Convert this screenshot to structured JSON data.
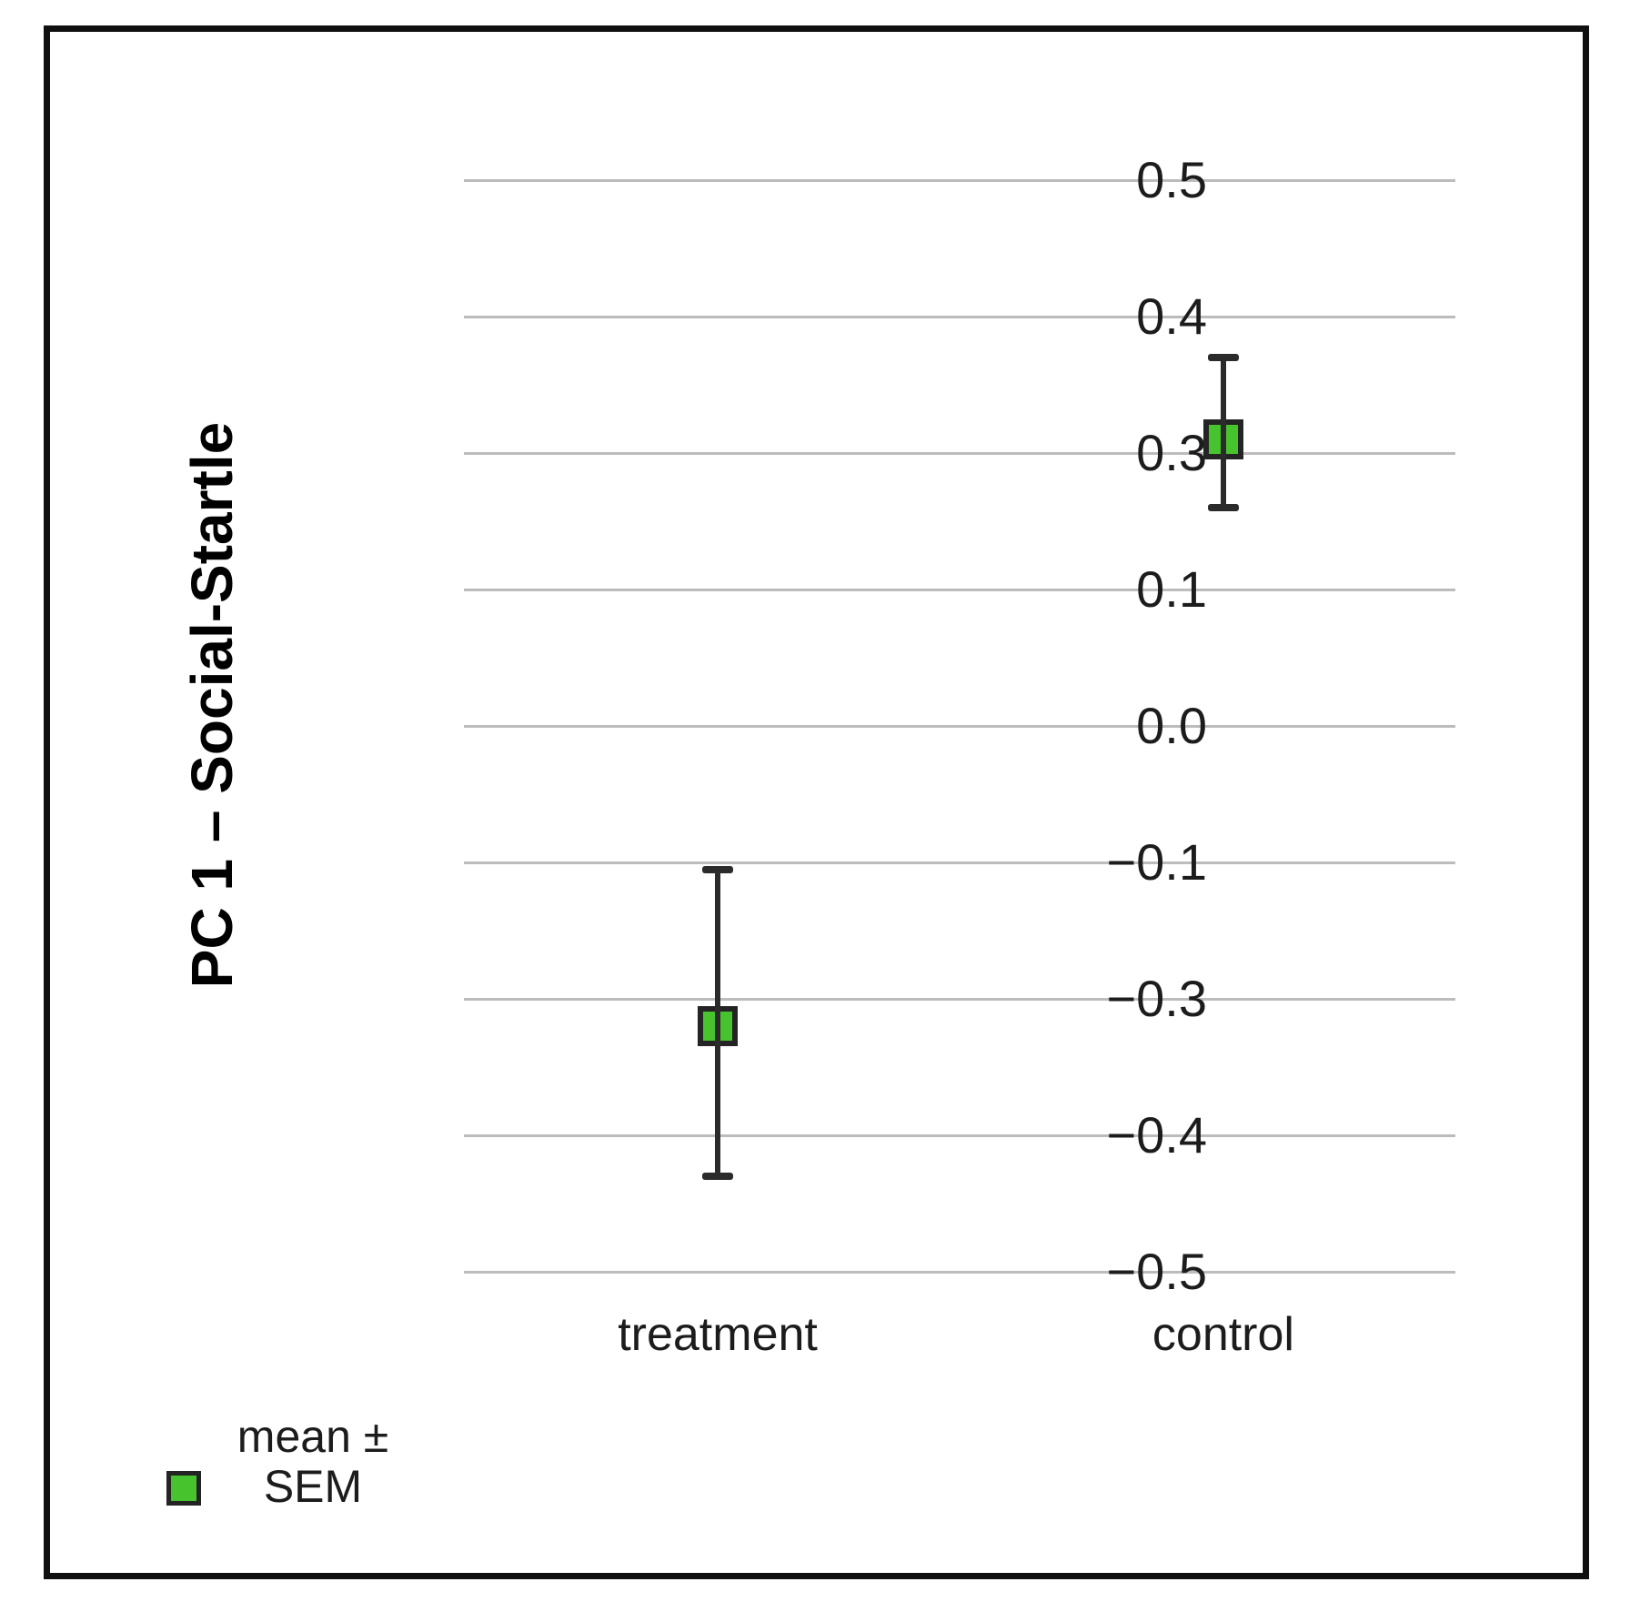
{
  "chart_data": {
    "type": "scatter",
    "title": "",
    "ylabel": "PC 1 – Social-Startle",
    "xlabel": "",
    "categories": [
      "treatment",
      "control"
    ],
    "y_tick_labels": [
      "0.5",
      "0.4",
      "0.3",
      "0.1",
      "0.0",
      "−0.1",
      "−0.3",
      "−0.4",
      "−0.5"
    ],
    "y_tick_values": [
      0.5,
      0.4,
      0.3,
      0.1,
      0.0,
      -0.1,
      -0.3,
      -0.4,
      -0.5
    ],
    "grid": true,
    "legend_position": "bottom-left",
    "series": [
      {
        "name": "mean ± SEM",
        "points": [
          {
            "category": "treatment",
            "mean": -0.32,
            "upper": -0.11,
            "lower": -0.43
          },
          {
            "category": "control",
            "mean": 0.31,
            "upper": 0.37,
            "lower": 0.22
          }
        ]
      }
    ],
    "legend": {
      "line1": "mean ±",
      "line2": "SEM"
    },
    "colors": {
      "marker_fill": "#47c32d",
      "marker_border": "#242424",
      "errorbar": "#2b2b2b",
      "gridline": "#bcbcbc",
      "text": "#1c1c1c",
      "figure_border": "#101010",
      "background": "#ffffff"
    }
  }
}
